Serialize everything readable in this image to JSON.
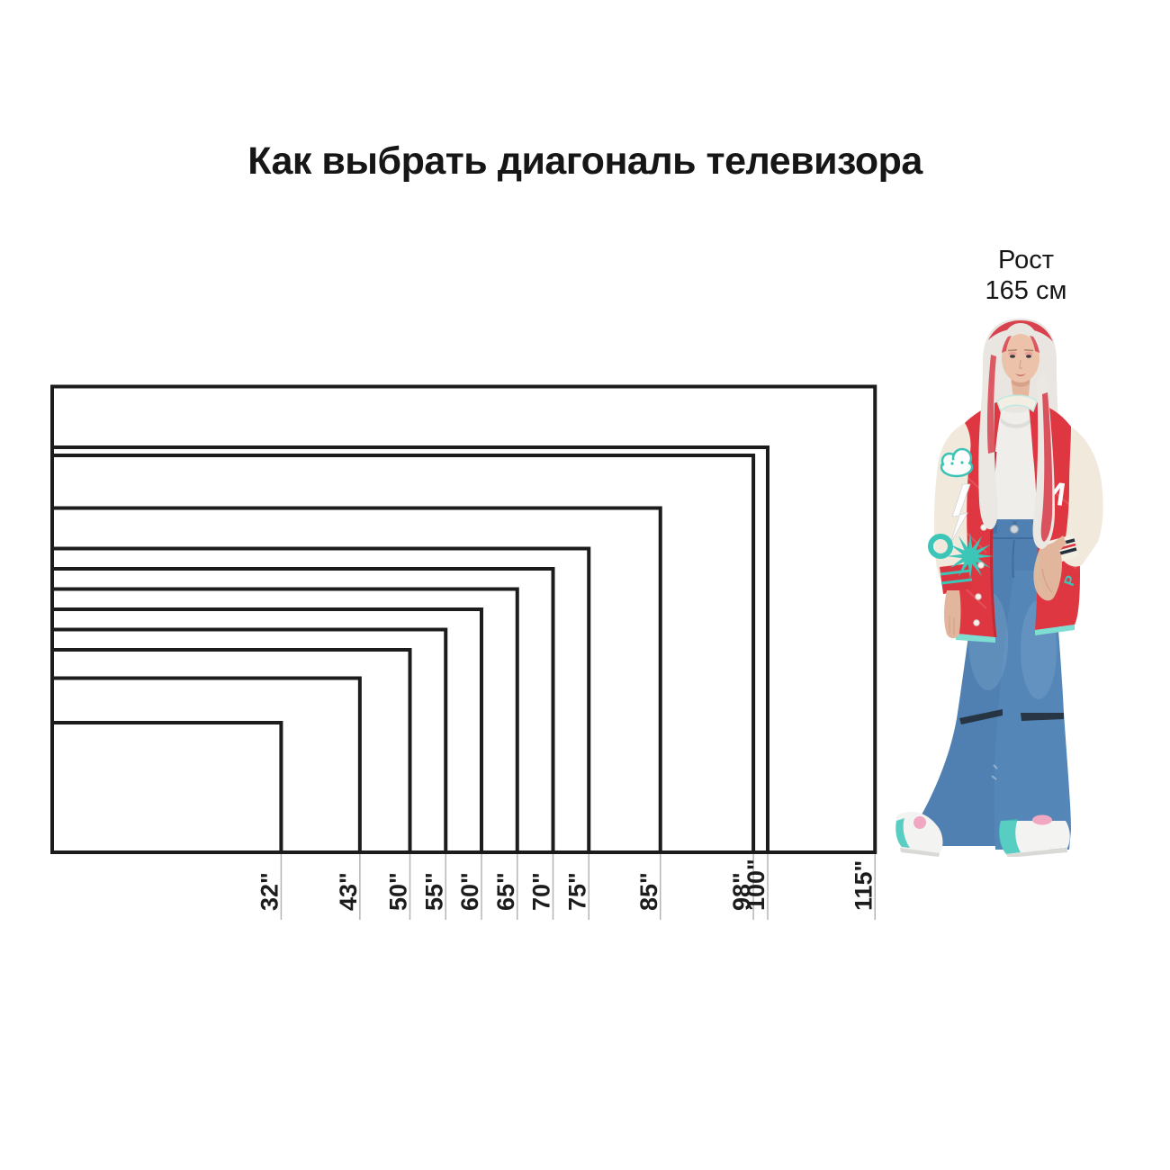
{
  "title": "Как выбрать диагональ телевизора",
  "person": {
    "label_line1": "Рост",
    "label_line2": "165 см",
    "height_cm": 165
  },
  "chart_data": {
    "type": "nested-rectangles",
    "title": "Как выбрать диагональ телевизора",
    "description": "Сравнение размеров экранов телевизоров 16:9, общая нижняя левая точка; рядом фигура человека для масштаба",
    "unit": "дюймы (диагональ)",
    "aspect_ratio": "16:9",
    "sizes_inches": [
      32,
      43,
      50,
      55,
      60,
      65,
      70,
      75,
      85,
      98,
      100,
      115
    ],
    "labels": [
      "32\"",
      "43\"",
      "50\"",
      "55\"",
      "60\"",
      "65\"",
      "70\"",
      "75\"",
      "85\"",
      "98\"",
      "100\"",
      "115\""
    ],
    "person_reference": {
      "label": "Рост 165 см",
      "height_cm": 165
    }
  },
  "colors": {
    "outline": "#1c1c1c",
    "tick_line": "#b5b5b5",
    "text": "#1c1c1c",
    "jacket_red": "#de3742",
    "jacket_red_dark": "#c22b36",
    "sleeve_cream": "#f0e9dc",
    "accent_mint": "#3cc6b8",
    "trim_mint": "#7fded2",
    "denim_blue": "#4f80b1",
    "denim_dark": "#3f6da1",
    "hair_silver": "#e9e6e1",
    "hair_red": "#d8414e",
    "skin": "#ecc2aa",
    "shoe_white": "#f3f3f1",
    "shoe_pink": "#f0a8c2"
  }
}
